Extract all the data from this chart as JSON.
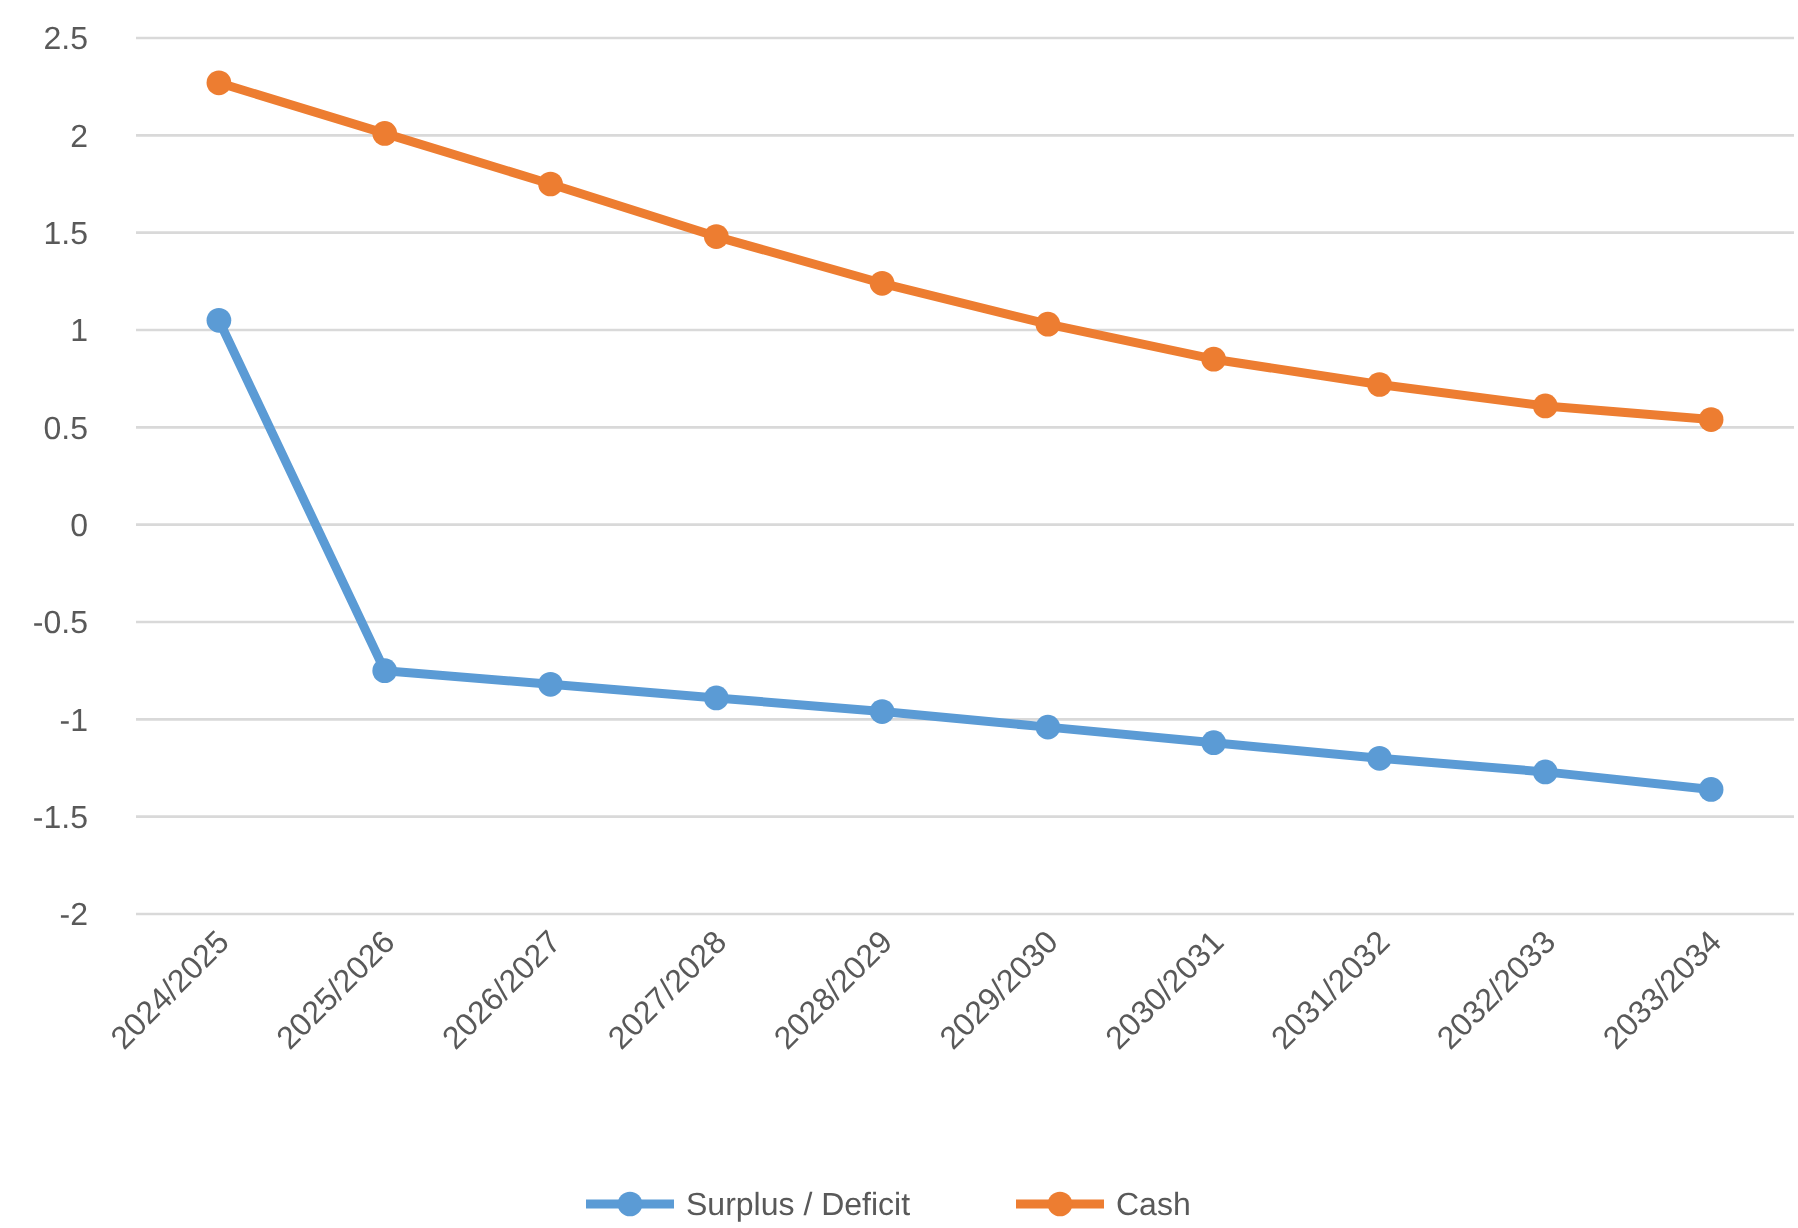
{
  "chart_data": {
    "type": "line",
    "categories": [
      "2024/2025",
      "2025/2026",
      "2026/2027",
      "2027/2028",
      "2028/2029",
      "2029/2030",
      "2030/2031",
      "2031/2032",
      "2032/2033",
      "2033/2034"
    ],
    "series": [
      {
        "name": "Surplus / Deficit",
        "color": "#5b9bd5",
        "values": [
          1.05,
          -0.75,
          -0.82,
          -0.89,
          -0.96,
          -1.04,
          -1.12,
          -1.2,
          -1.27,
          -1.36
        ]
      },
      {
        "name": "Cash",
        "color": "#ed7d31",
        "values": [
          2.27,
          2.01,
          1.75,
          1.48,
          1.24,
          1.03,
          0.85,
          0.72,
          0.61,
          0.54
        ]
      }
    ],
    "ylim": [
      -2,
      2.5
    ],
    "yticks": [
      2.5,
      2,
      1.5,
      1,
      0.5,
      0,
      -0.5,
      -1,
      -1.5,
      -2
    ],
    "grid": "y",
    "legend": "bottom",
    "marker": "circle",
    "line_style": "solid"
  }
}
